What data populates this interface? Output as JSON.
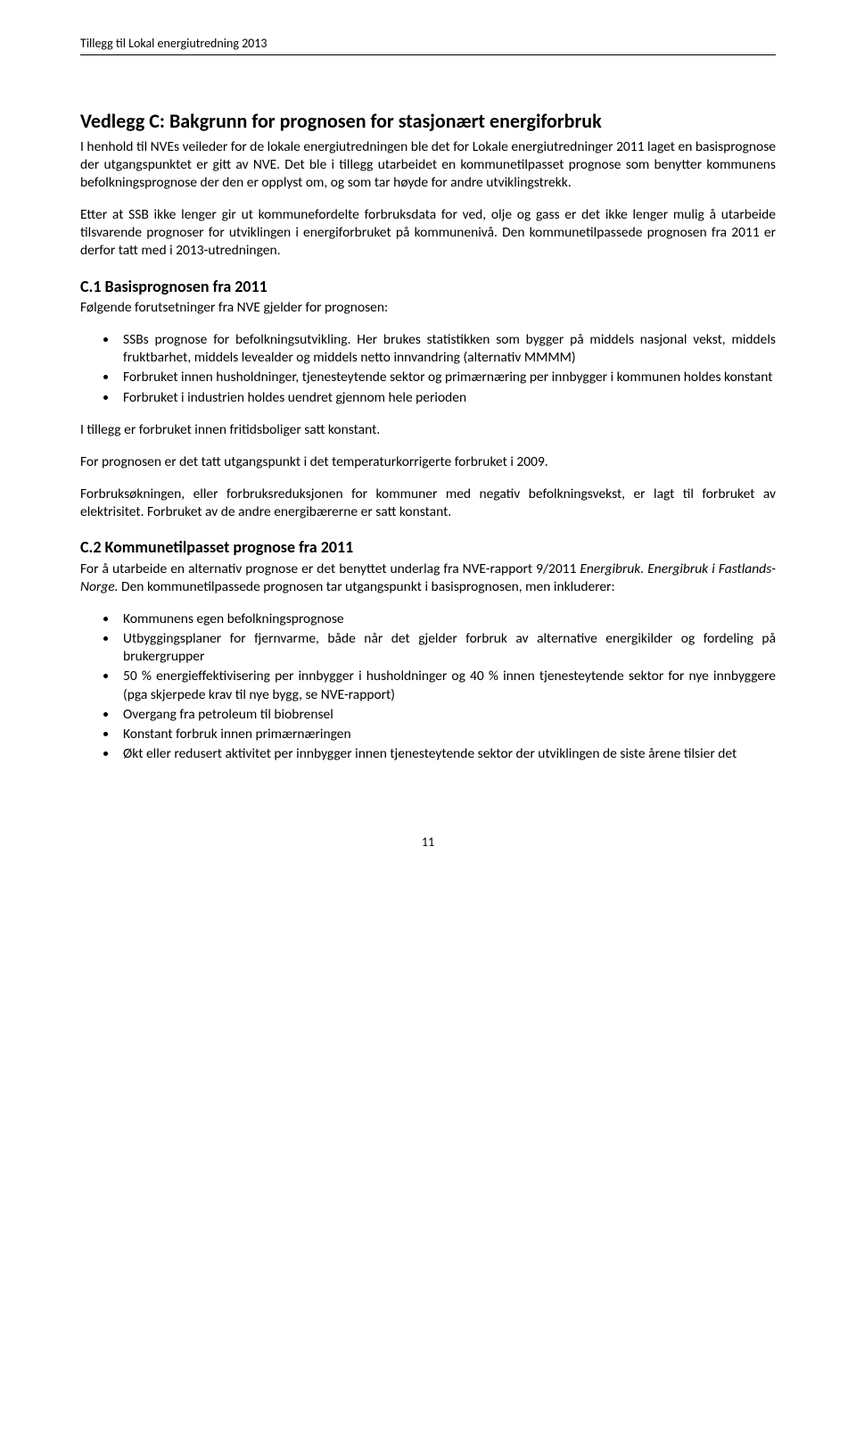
{
  "runningHeader": "Tillegg til Lokal energiutredning 2013",
  "title": "Vedlegg C: Bakgrunn for prognosen for stasjonært energiforbruk",
  "para1": "I henhold til NVEs veileder for de lokale energiutredningen ble det for Lokale energiutredninger 2011 laget en basisprognose der utgangspunktet er gitt av NVE. Det ble i tillegg utarbeidet en kommunetilpasset prognose som benytter kommunens befolkningsprognose der den er opplyst om, og som tar høyde for andre utviklingstrekk.",
  "para2": "Etter at SSB ikke lenger gir ut kommunefordelte forbruksdata for ved, olje og gass er det ikke lenger mulig å utarbeide tilsvarende prognoser for utviklingen i energiforbruket på kommunenivå. Den kommunetilpassede prognosen fra 2011 er derfor tatt med i 2013-utredningen.",
  "sectionC1": {
    "heading": "C.1 Basisprognosen fra 2011",
    "lead": "Følgende forutsetninger fra NVE gjelder for prognosen:",
    "bullets": [
      "SSBs prognose for befolkningsutvikling. Her brukes statistikken som bygger på middels nasjonal vekst, middels fruktbarhet, middels levealder og middels netto innvandring (alternativ MMMM)",
      "Forbruket innen husholdninger, tjenesteytende sektor og primærnæring per innbygger i kommunen holdes konstant",
      "Forbruket i industrien holdes uendret gjennom hele perioden"
    ],
    "p1": "I tillegg er forbruket innen fritidsboliger satt konstant.",
    "p2": "For prognosen er det tatt utgangspunkt i det temperaturkorrigerte forbruket i 2009.",
    "p3": "Forbruksøkningen, eller forbruksreduksjonen for kommuner med negativ befolkningsvekst, er lagt til forbruket av elektrisitet. Forbruket av de andre energibærerne er satt konstant."
  },
  "sectionC2": {
    "heading": "C.2 Kommunetilpasset prognose fra 2011",
    "lead_a": "For å utarbeide en alternativ prognose er det benyttet underlag fra NVE-rapport 9/2011 ",
    "lead_b_italic": "Energibruk. Energibruk i Fastlands-Norge.",
    "lead_c": " Den kommunetilpassede prognosen tar utgangspunkt i basisprognosen, men inkluderer:",
    "bullets": [
      "Kommunens egen befolkningsprognose",
      "Utbyggingsplaner for fjernvarme, både når det gjelder forbruk av alternative energikilder og fordeling på brukergrupper",
      "50 % energieffektivisering per innbygger i husholdninger og 40 % innen tjenesteytende sektor for nye innbyggere (pga skjerpede krav til nye bygg, se NVE-rapport)",
      "Overgang fra petroleum til biobrensel",
      "Konstant forbruk innen primærnæringen",
      "Økt eller redusert aktivitet per innbygger innen tjenesteytende sektor der utviklingen de siste årene tilsier det"
    ]
  },
  "pageNumber": "11"
}
